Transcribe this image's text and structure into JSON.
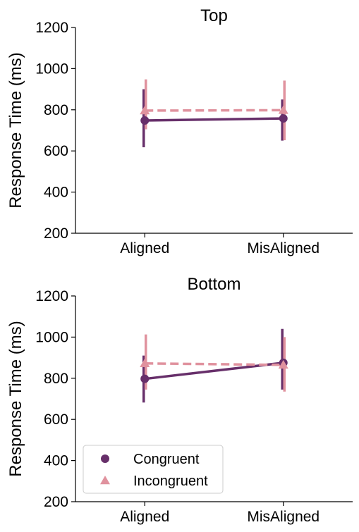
{
  "chart_data": [
    {
      "type": "line",
      "title": "Top",
      "xlabel": "",
      "ylabel": "Response Time (ms)",
      "categories": [
        "Aligned",
        "MisAligned"
      ],
      "ylim": [
        200,
        1200
      ],
      "yticks": [
        200,
        400,
        600,
        800,
        1000,
        1200
      ],
      "grid": false,
      "series": [
        {
          "name": "Congruent",
          "values": [
            748,
            758
          ],
          "ci_low": [
            618,
            650
          ],
          "ci_high": [
            900,
            850
          ],
          "color": "#672f6a",
          "marker": "circle",
          "linestyle": "solid"
        },
        {
          "name": "Incongruent",
          "values": [
            796,
            798
          ],
          "ci_low": [
            705,
            652
          ],
          "ci_high": [
            948,
            942
          ],
          "color": "#e0929e",
          "marker": "triangle",
          "linestyle": "dashed"
        }
      ]
    },
    {
      "type": "line",
      "title": "Bottom",
      "xlabel": "",
      "ylabel": "Response Time (ms)",
      "categories": [
        "Aligned",
        "MisAligned"
      ],
      "ylim": [
        200,
        1200
      ],
      "yticks": [
        200,
        400,
        600,
        800,
        1000,
        1200
      ],
      "grid": false,
      "legend": "bottom-left",
      "series": [
        {
          "name": "Congruent",
          "values": [
            797,
            875
          ],
          "ci_low": [
            682,
            745
          ],
          "ci_high": [
            910,
            1040
          ],
          "color": "#672f6a",
          "marker": "circle",
          "linestyle": "solid"
        },
        {
          "name": "Incongruent",
          "values": [
            872,
            865
          ],
          "ci_low": [
            745,
            735
          ],
          "ci_high": [
            1013,
            1000
          ],
          "color": "#e0929e",
          "marker": "triangle",
          "linestyle": "dashed"
        }
      ]
    }
  ]
}
